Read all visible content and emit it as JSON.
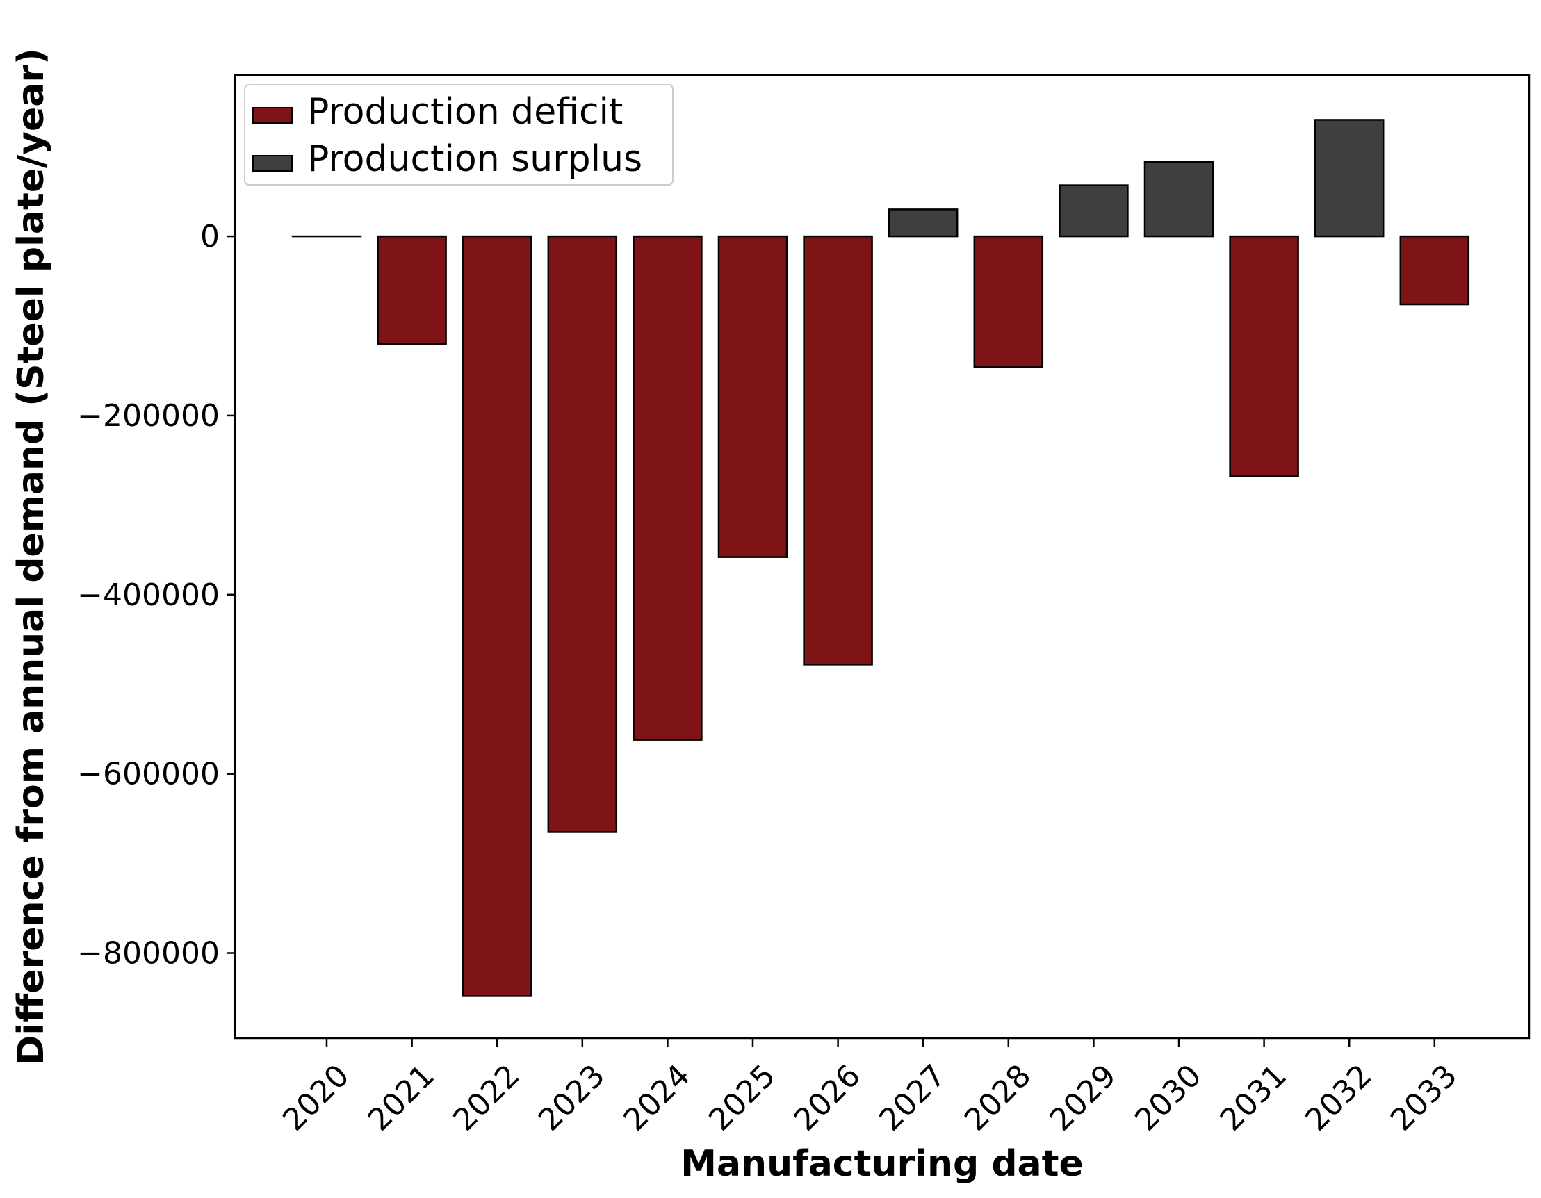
{
  "chart_data": {
    "type": "bar",
    "title": "",
    "xlabel": "Manufacturing date",
    "ylabel": "Difference from annual demand (Steel plate/year)",
    "categories": [
      "2020",
      "2021",
      "2022",
      "2023",
      "2024",
      "2025",
      "2026",
      "2027",
      "2028",
      "2029",
      "2030",
      "2031",
      "2032",
      "2033"
    ],
    "values": [
      0,
      -120000,
      -848000,
      -665000,
      -562000,
      -358000,
      -478000,
      30000,
      -146000,
      57000,
      83000,
      -268000,
      130000,
      -76000
    ],
    "ylim": [
      -895000,
      180000
    ],
    "yticks": [
      0,
      -200000,
      -400000,
      -600000,
      -800000
    ],
    "ytick_labels": [
      "0",
      "−200000",
      "−400000",
      "−600000",
      "−800000"
    ],
    "grid": false,
    "legend": {
      "position": "top-left",
      "entries": [
        {
          "label": "Production deficit",
          "color": "#7f1416"
        },
        {
          "label": "Production surplus",
          "color": "#3f3f3f"
        }
      ]
    },
    "colors": {
      "deficit": "#7f1416",
      "surplus": "#3f3f3f",
      "edge": "#000000"
    }
  }
}
